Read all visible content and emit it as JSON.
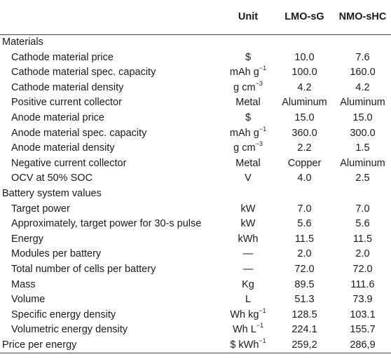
{
  "header": {
    "col_label": "",
    "col_unit": "Unit",
    "col_lmo": "LMO-sG",
    "col_nmo": "NMO-sHC"
  },
  "sections": [
    {
      "title": "Materials",
      "rows": [
        {
          "label": "Cathode material price",
          "unit_base": "$",
          "unit_sup": "",
          "lmo": "10.0",
          "nmo": "7.6"
        },
        {
          "label": "Cathode material spec. capacity",
          "unit_base": "mAh g",
          "unit_sup": "−1",
          "lmo": "100.0",
          "nmo": "160.0"
        },
        {
          "label": "Cathode material density",
          "unit_base": "g cm",
          "unit_sup": "−3",
          "lmo": "4.2",
          "nmo": "4.2"
        },
        {
          "label": "Positive current collector",
          "unit_base": "Metal",
          "unit_sup": "",
          "lmo": "Aluminum",
          "nmo": "Aluminum"
        },
        {
          "label": "Anode material price",
          "unit_base": "$",
          "unit_sup": "",
          "lmo": "15.0",
          "nmo": "15.0"
        },
        {
          "label": "Anode material spec. capacity",
          "unit_base": "mAh g",
          "unit_sup": "−1",
          "lmo": "360.0",
          "nmo": "300.0"
        },
        {
          "label": "Anode material density",
          "unit_base": "g cm",
          "unit_sup": "−3",
          "lmo": "2.2",
          "nmo": "1.5"
        },
        {
          "label": "Negative current collector",
          "unit_base": "Metal",
          "unit_sup": "",
          "lmo": "Copper",
          "nmo": "Aluminum"
        },
        {
          "label": "OCV at 50% SOC",
          "unit_base": "V",
          "unit_sup": "",
          "lmo": "4.0",
          "nmo": "2.5"
        }
      ]
    },
    {
      "title": "Battery system values",
      "rows": [
        {
          "label": "Target power",
          "unit_base": "kW",
          "unit_sup": "",
          "lmo": "7.0",
          "nmo": "7.0"
        },
        {
          "label": "Approximately, target power for 30-s pulse",
          "unit_base": "kW",
          "unit_sup": "",
          "lmo": "5.6",
          "nmo": "5.6"
        },
        {
          "label": "Energy",
          "unit_base": "kWh",
          "unit_sup": "",
          "lmo": "11.5",
          "nmo": "11.5"
        },
        {
          "label": "Modules per battery",
          "unit_base": "—",
          "unit_sup": "",
          "lmo": "2.0",
          "nmo": "2.0"
        },
        {
          "label": "Total number of cells per battery",
          "unit_base": "—",
          "unit_sup": "",
          "lmo": "72.0",
          "nmo": "72.0"
        },
        {
          "label": "Mass",
          "unit_base": "Kg",
          "unit_sup": "",
          "lmo": "89.5",
          "nmo": "111.6"
        },
        {
          "label": "Volume",
          "unit_base": "L",
          "unit_sup": "",
          "lmo": "51.3",
          "nmo": "73.9"
        },
        {
          "label": "Specific energy density",
          "unit_base": "Wh kg",
          "unit_sup": "−1",
          "lmo": "128.5",
          "nmo": "103.1"
        },
        {
          "label": "Volumetric energy density",
          "unit_base": "Wh L",
          "unit_sup": "−1",
          "lmo": "224.1",
          "nmo": "155.7"
        }
      ]
    }
  ],
  "footer_row": {
    "label": "Price per energy",
    "unit_base": "$ kWh",
    "unit_sup": "−1",
    "lmo": "259,2",
    "nmo": "286,9"
  }
}
